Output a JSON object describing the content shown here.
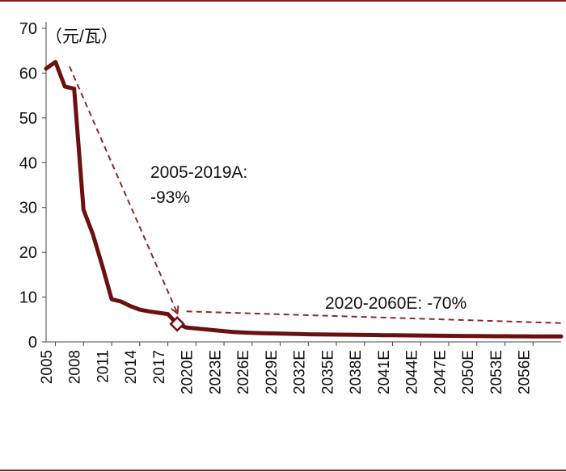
{
  "chart_data": {
    "type": "line",
    "unit_label": "（元/瓦）",
    "ylim": [
      0,
      70
    ],
    "y_ticks": [
      "0",
      "10",
      "20",
      "30",
      "40",
      "50",
      "60",
      "70"
    ],
    "x_tick_labels": [
      "2005",
      "2008",
      "2011",
      "2014",
      "2017",
      "2020E",
      "2023E",
      "2026E",
      "2029E",
      "2032E",
      "2035E",
      "2038E",
      "2041E",
      "2044E",
      "2047E",
      "2050E",
      "2053E",
      "2056E"
    ],
    "x_first_year": 2005,
    "x_last_year": 2060,
    "series": [
      {
        "x": [
          2005,
          2006,
          2007,
          2008,
          2009,
          2010,
          2011,
          2012,
          2013,
          2014,
          2015,
          2016,
          2017,
          2018,
          2019,
          2020,
          2021,
          2022,
          2023,
          2024,
          2025,
          2026,
          2027,
          2028,
          2029,
          2030,
          2031,
          2032,
          2033,
          2034,
          2035,
          2036,
          2037,
          2038,
          2039,
          2040,
          2041,
          2042,
          2043,
          2044,
          2045,
          2046,
          2047,
          2048,
          2049,
          2050,
          2051,
          2052,
          2053,
          2054,
          2055,
          2056,
          2057,
          2058,
          2059,
          2060
        ],
        "values": [
          61,
          62.5,
          57,
          56.5,
          29.5,
          24,
          17,
          9.5,
          9,
          8,
          7.2,
          6.8,
          6.5,
          6.2,
          4.0,
          3.2,
          3.0,
          2.8,
          2.6,
          2.4,
          2.2,
          2.1,
          2.0,
          1.95,
          1.9,
          1.85,
          1.8,
          1.75,
          1.7,
          1.68,
          1.65,
          1.62,
          1.6,
          1.58,
          1.55,
          1.53,
          1.5,
          1.48,
          1.46,
          1.44,
          1.42,
          1.4,
          1.38,
          1.36,
          1.34,
          1.32,
          1.3,
          1.28,
          1.27,
          1.26,
          1.25,
          1.24,
          1.23,
          1.22,
          1.21,
          1.2
        ],
        "color": "#6b0f0f"
      }
    ],
    "marker": {
      "x": 2019,
      "y": 4.0
    },
    "annotations": [
      {
        "line1": "2005-2019A:",
        "line2": "-93%"
      },
      {
        "text": "2020-2060E: -70%"
      }
    ],
    "trend_arrow_1": {
      "from": [
        2007.5,
        61.5
      ],
      "to": [
        2019,
        6.5
      ]
    },
    "trend_arrow_2": {
      "from": [
        2020,
        6.8
      ],
      "to": [
        2060,
        4.2
      ]
    },
    "colors": {
      "line": "#6b0f0f",
      "dash": "#8b2a2a",
      "rule": "#8b1a1a"
    }
  }
}
